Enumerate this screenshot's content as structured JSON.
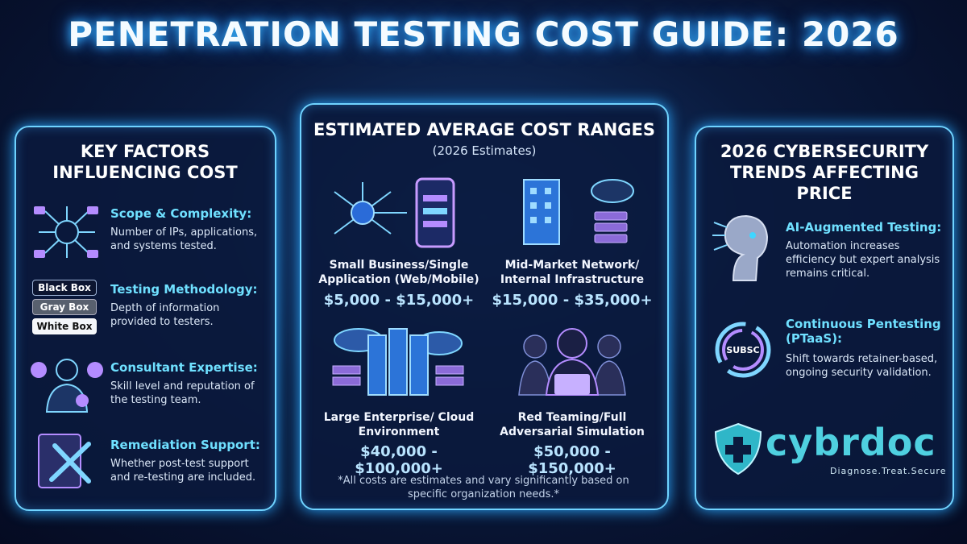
{
  "title": "PENETRATION TESTING COST GUIDE: 2026",
  "factors": {
    "heading": "KEY FACTORS INFLUENCING COST",
    "items": [
      {
        "title": "Scope & Complexity:",
        "text": "Number of IPs, applications, and systems tested."
      },
      {
        "title": "Testing Methodology:",
        "text": "Depth of information provided to testers."
      },
      {
        "title": "Consultant Expertise:",
        "text": "Skill level and reputation of the testing team."
      },
      {
        "title": "Remediation Support:",
        "text": "Whether post-test support and re-testing are included."
      }
    ],
    "methodologies": [
      "Black Box",
      "Gray Box",
      "White Box"
    ]
  },
  "costs": {
    "heading": "ESTIMATED AVERAGE COST RANGES",
    "subheading": "(2026 Estimates)",
    "items": [
      {
        "name": "Small Business/Single Application (Web/Mobile)",
        "price": "$5,000 - $15,000+"
      },
      {
        "name": "Mid-Market Network/ Internal Infrastructure",
        "price": "$15,000 - $35,000+"
      },
      {
        "name": "Large Enterprise/ Cloud Environment",
        "price": "$40,000 - $100,000+"
      },
      {
        "name": "Red Teaming/Full Adversarial Simulation",
        "price": "$50,000 - $150,000+"
      }
    ],
    "note": "*All costs are estimates and vary significantly based on specific organization needs.*"
  },
  "trends": {
    "heading": "2026 CYBERSECURITY TRENDS AFFECTING PRICE",
    "items": [
      {
        "title": "AI-Augmented Testing:",
        "text": "Automation increases efficiency but expert analysis remains critical."
      },
      {
        "title": "Continuous Pentesting (PTaaS):",
        "text": "Shift towards retainer-based, ongoing security validation."
      }
    ],
    "icon_label": "SUBSC"
  },
  "logo": {
    "name": "cybrdoc",
    "tagline": "Diagnose.Treat.Secure"
  }
}
